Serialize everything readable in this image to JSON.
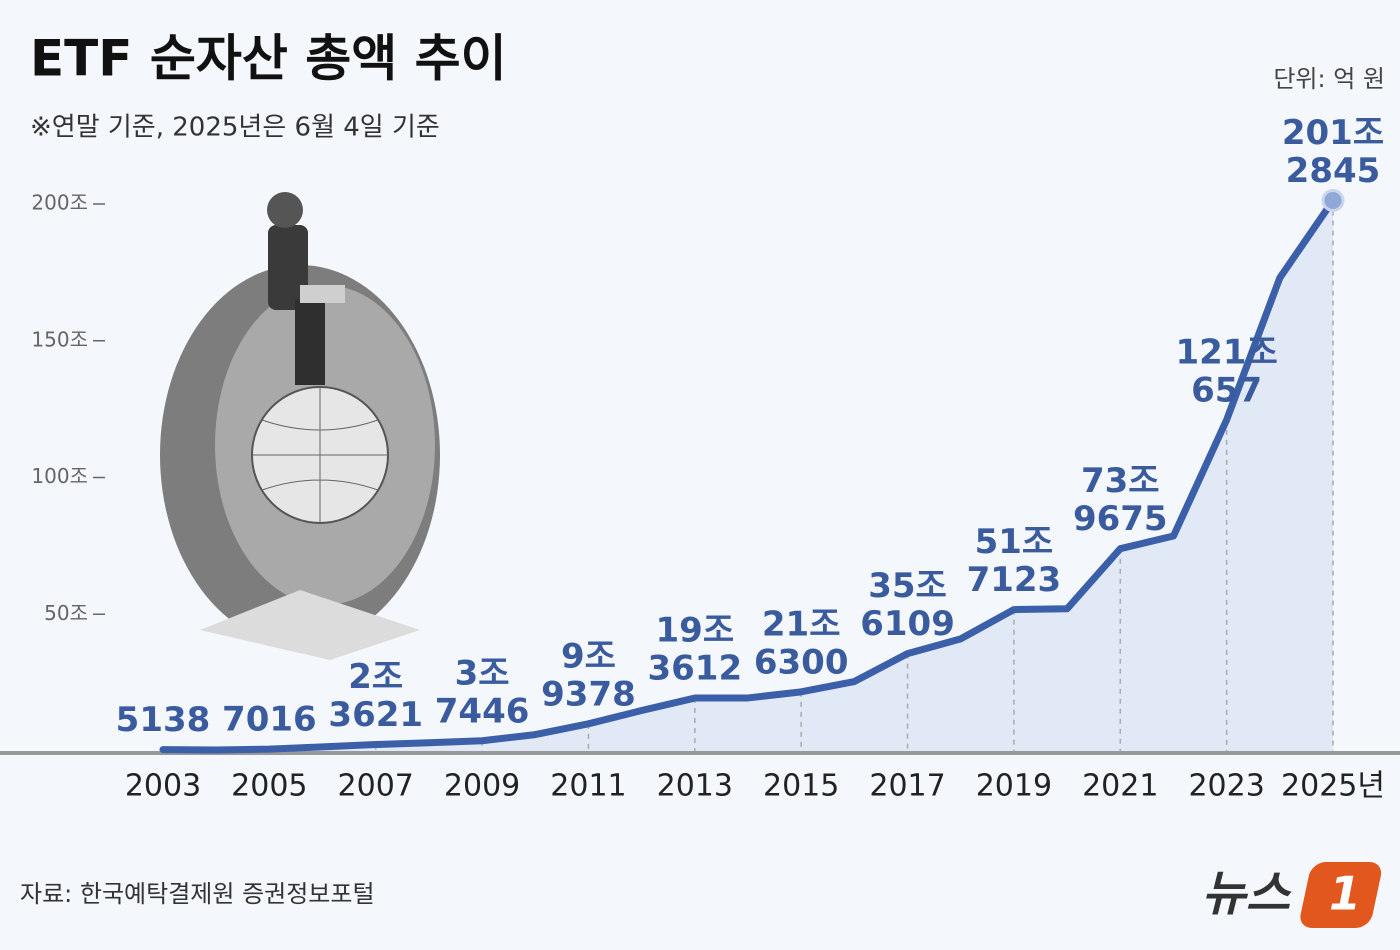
{
  "chart_data": {
    "type": "line",
    "title": "ETF 순자산 총액 추이",
    "subtitle": "※연말 기준, 2025년은 6월 4일 기준",
    "unit": "단위: 억 원",
    "source": "자료: 한국예탁결제원 증권정보포털",
    "logo_text": "뉴스",
    "logo_number": "1",
    "categories": [
      "2003",
      null,
      "2005",
      null,
      "2007",
      null,
      "2009",
      null,
      "2011",
      null,
      "2013",
      null,
      "2015",
      null,
      "2017",
      null,
      "2019",
      null,
      "2021",
      null,
      "2023",
      null,
      "2025년"
    ],
    "values": [
      5138,
      3500,
      7016,
      15000,
      23621,
      30000,
      37446,
      60000,
      99378,
      148000,
      193612,
      194000,
      216300,
      254000,
      356109,
      410000,
      517123,
      520000,
      739675,
      786000,
      1210657,
      1730000,
      2012845
    ],
    "value_labels": [
      [
        "5138"
      ],
      null,
      [
        "7016"
      ],
      null,
      [
        "2조",
        "3621"
      ],
      null,
      [
        "3조",
        "7446"
      ],
      null,
      [
        "9조",
        "9378"
      ],
      null,
      [
        "19조",
        "3612"
      ],
      null,
      [
        "21조",
        "6300"
      ],
      null,
      [
        "35조",
        "6109"
      ],
      null,
      [
        "51조",
        "7123"
      ],
      null,
      [
        "73조",
        "9675"
      ],
      null,
      [
        "121조",
        "657"
      ],
      null,
      [
        "201조",
        "2845"
      ]
    ],
    "color": "#3b5fa8",
    "ylim": [
      0,
      2000000
    ],
    "yticks": [
      {
        "value": 500000,
        "label": "50조"
      },
      {
        "value": 1000000,
        "label": "100조"
      },
      {
        "value": 1500000,
        "label": "150조"
      },
      {
        "value": 2000000,
        "label": "200조"
      }
    ],
    "grid": false
  }
}
